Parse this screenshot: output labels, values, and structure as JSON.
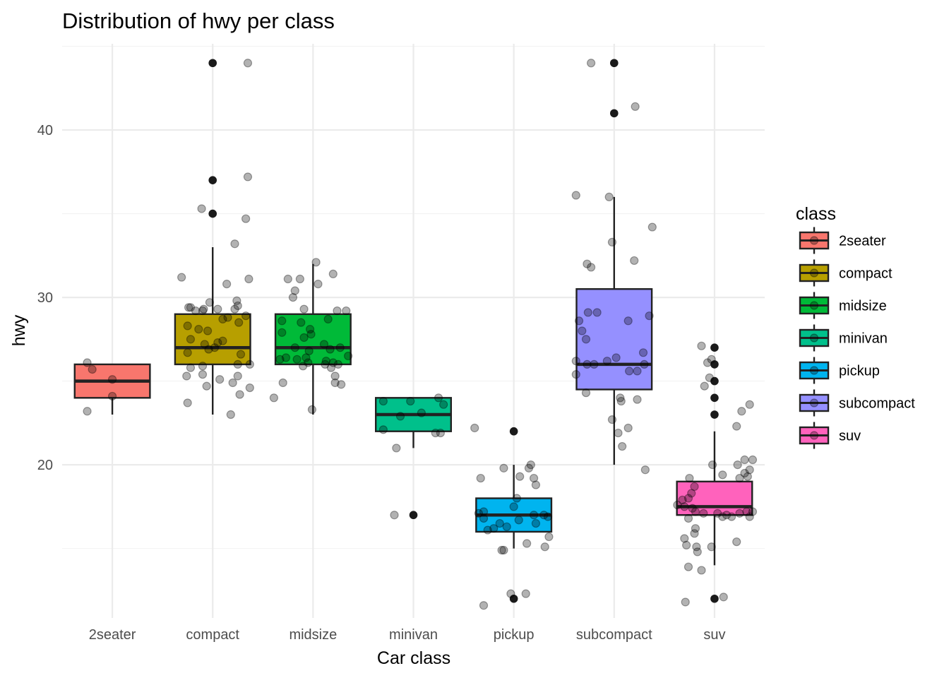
{
  "chart_data": {
    "type": "boxplot",
    "title": "Distribution of hwy per class",
    "xlabel": "Car class",
    "ylabel": "hwy",
    "ylim": [
      10.85,
      45.15
    ],
    "yticks": [
      20,
      30,
      40
    ],
    "grid": true,
    "legend": {
      "title": "class",
      "placement": "right"
    },
    "categories": [
      "2seater",
      "compact",
      "midsize",
      "minivan",
      "pickup",
      "subcompact",
      "suv"
    ],
    "series": [
      {
        "name": "2seater",
        "color": "#F8766D",
        "box": {
          "lower_whisker": 23,
          "q1": 24,
          "median": 25,
          "q3": 26,
          "upper_whisker": 26
        },
        "outliers": [],
        "points": [
          {
            "x": -0.25,
            "y": 26.1
          },
          {
            "x": -0.25,
            "y": 23.2
          },
          {
            "x": -0.2,
            "y": 25.7
          },
          {
            "x": 0.0,
            "y": 25.1
          },
          {
            "x": 0.0,
            "y": 24.1
          }
        ]
      },
      {
        "name": "compact",
        "color": "#B79F00",
        "box": {
          "lower_whisker": 23,
          "q1": 26,
          "median": 27,
          "q3": 29,
          "upper_whisker": 33
        },
        "outliers": [
          35,
          37,
          44
        ],
        "points": [
          {
            "x": 0.35,
            "y": 44.0
          },
          {
            "x": 0.35,
            "y": 37.2
          },
          {
            "x": 0.33,
            "y": 34.7
          },
          {
            "x": 0.14,
            "y": 30.8
          },
          {
            "x": -0.31,
            "y": 31.2
          },
          {
            "x": 0.22,
            "y": 33.2
          },
          {
            "x": 0.36,
            "y": 31.1
          },
          {
            "x": -0.11,
            "y": 35.3
          },
          {
            "x": -0.26,
            "y": 25.3
          },
          {
            "x": -0.25,
            "y": 28.3
          },
          {
            "x": -0.24,
            "y": 29.4
          },
          {
            "x": -0.22,
            "y": 29.4
          },
          {
            "x": -0.17,
            "y": 29.2
          },
          {
            "x": -0.1,
            "y": 29.2
          },
          {
            "x": -0.09,
            "y": 29.3
          },
          {
            "x": -0.03,
            "y": 29.7
          },
          {
            "x": 0.05,
            "y": 29.3
          },
          {
            "x": 0.22,
            "y": 29.3
          },
          {
            "x": 0.24,
            "y": 29.8
          },
          {
            "x": 0.25,
            "y": 29.5
          },
          {
            "x": 0.33,
            "y": 28.9
          },
          {
            "x": 0.26,
            "y": 28.5
          },
          {
            "x": 0.15,
            "y": 28.8
          },
          {
            "x": 0.1,
            "y": 28.7
          },
          {
            "x": -0.14,
            "y": 28.1
          },
          {
            "x": -0.05,
            "y": 28.0
          },
          {
            "x": -0.22,
            "y": 27.5
          },
          {
            "x": -0.25,
            "y": 26.7
          },
          {
            "x": -0.08,
            "y": 27.2
          },
          {
            "x": -0.04,
            "y": 26.9
          },
          {
            "x": 0.02,
            "y": 27.0
          },
          {
            "x": 0.05,
            "y": 27.3
          },
          {
            "x": 0.1,
            "y": 27.4
          },
          {
            "x": 0.28,
            "y": 26.6
          },
          {
            "x": -0.22,
            "y": 25.8
          },
          {
            "x": -0.1,
            "y": 25.9
          },
          {
            "x": 0.25,
            "y": 26.0
          },
          {
            "x": 0.37,
            "y": 26.0
          },
          {
            "x": 0.25,
            "y": 25.3
          },
          {
            "x": -0.1,
            "y": 25.4
          },
          {
            "x": 0.07,
            "y": 25.1
          },
          {
            "x": 0.2,
            "y": 24.9
          },
          {
            "x": -0.06,
            "y": 24.7
          },
          {
            "x": 0.27,
            "y": 24.2
          },
          {
            "x": 0.37,
            "y": 24.6
          },
          {
            "x": -0.25,
            "y": 23.7
          },
          {
            "x": 0.18,
            "y": 23.0
          }
        ]
      },
      {
        "name": "midsize",
        "color": "#00BA38",
        "box": {
          "lower_whisker": 23,
          "q1": 26,
          "median": 27,
          "q3": 29,
          "upper_whisker": 32
        },
        "outliers": [],
        "points": [
          {
            "x": 0.03,
            "y": 32.1
          },
          {
            "x": -0.25,
            "y": 31.1
          },
          {
            "x": -0.13,
            "y": 31.1
          },
          {
            "x": 0.05,
            "y": 30.8
          },
          {
            "x": 0.2,
            "y": 31.4
          },
          {
            "x": -0.18,
            "y": 30.4
          },
          {
            "x": -0.2,
            "y": 30.0
          },
          {
            "x": -0.09,
            "y": 29.3
          },
          {
            "x": 0.24,
            "y": 29.2
          },
          {
            "x": 0.33,
            "y": 29.2
          },
          {
            "x": -0.31,
            "y": 28.6
          },
          {
            "x": -0.12,
            "y": 28.5
          },
          {
            "x": 0.15,
            "y": 28.7
          },
          {
            "x": -0.03,
            "y": 28.1
          },
          {
            "x": -0.31,
            "y": 27.9
          },
          {
            "x": -0.09,
            "y": 27.6
          },
          {
            "x": -0.02,
            "y": 27.8
          },
          {
            "x": -0.18,
            "y": 27.0
          },
          {
            "x": 0.11,
            "y": 27.2
          },
          {
            "x": 0.27,
            "y": 27.0
          },
          {
            "x": -0.04,
            "y": 26.8
          },
          {
            "x": 0.17,
            "y": 26.9
          },
          {
            "x": -0.27,
            "y": 26.4
          },
          {
            "x": -0.16,
            "y": 26.3
          },
          {
            "x": -0.07,
            "y": 26.4
          },
          {
            "x": -0.05,
            "y": 26.1
          },
          {
            "x": -0.1,
            "y": 25.9
          },
          {
            "x": 0.13,
            "y": 26.2
          },
          {
            "x": 0.2,
            "y": 26.1
          },
          {
            "x": 0.35,
            "y": 26.5
          },
          {
            "x": -0.33,
            "y": 26.3
          },
          {
            "x": 0.12,
            "y": 26.0
          },
          {
            "x": 0.18,
            "y": 25.8
          },
          {
            "x": 0.25,
            "y": 26.0
          },
          {
            "x": -0.3,
            "y": 24.9
          },
          {
            "x": 0.22,
            "y": 25.3
          },
          {
            "x": 0.22,
            "y": 24.9
          },
          {
            "x": 0.28,
            "y": 24.8
          },
          {
            "x": -0.39,
            "y": 24.0
          },
          {
            "x": -0.01,
            "y": 23.3
          }
        ]
      },
      {
        "name": "minivan",
        "color": "#00C08B",
        "box": {
          "lower_whisker": 21,
          "q1": 22,
          "median": 23,
          "q3": 24,
          "upper_whisker": 24
        },
        "outliers": [
          17
        ],
        "points": [
          {
            "x": -0.3,
            "y": 23.8
          },
          {
            "x": -0.03,
            "y": 23.8
          },
          {
            "x": 0.25,
            "y": 24.0
          },
          {
            "x": 0.3,
            "y": 23.6
          },
          {
            "x": -0.13,
            "y": 22.9
          },
          {
            "x": 0.08,
            "y": 23.1
          },
          {
            "x": -0.3,
            "y": 22.1
          },
          {
            "x": 0.22,
            "y": 21.9
          },
          {
            "x": 0.27,
            "y": 21.9
          },
          {
            "x": -0.17,
            "y": 21.0
          },
          {
            "x": -0.19,
            "y": 17.0
          }
        ]
      },
      {
        "name": "pickup",
        "color": "#00B4EF",
        "box": {
          "lower_whisker": 15,
          "q1": 16,
          "median": 17,
          "q3": 18,
          "upper_whisker": 20
        },
        "outliers": [
          12,
          22
        ],
        "points": [
          {
            "x": -0.39,
            "y": 22.2
          },
          {
            "x": -0.33,
            "y": 19.2
          },
          {
            "x": -0.1,
            "y": 19.8
          },
          {
            "x": 0.06,
            "y": 19.3
          },
          {
            "x": 0.15,
            "y": 19.8
          },
          {
            "x": 0.17,
            "y": 20.0
          },
          {
            "x": 0.2,
            "y": 19.2
          },
          {
            "x": 0.22,
            "y": 18.8
          },
          {
            "x": 0.03,
            "y": 18.0
          },
          {
            "x": -0.3,
            "y": 17.2
          },
          {
            "x": -0.35,
            "y": 17.1
          },
          {
            "x": -0.3,
            "y": 16.8
          },
          {
            "x": -0.2,
            "y": 16.2
          },
          {
            "x": -0.26,
            "y": 16.1
          },
          {
            "x": -0.14,
            "y": 16.5
          },
          {
            "x": -0.07,
            "y": 16.3
          },
          {
            "x": 0.05,
            "y": 16.7
          },
          {
            "x": 0.0,
            "y": 17.5
          },
          {
            "x": 0.2,
            "y": 17.0
          },
          {
            "x": 0.3,
            "y": 17.0
          },
          {
            "x": 0.34,
            "y": 16.9
          },
          {
            "x": 0.22,
            "y": 16.5
          },
          {
            "x": 0.35,
            "y": 15.7
          },
          {
            "x": -0.12,
            "y": 14.9
          },
          {
            "x": -0.1,
            "y": 14.9
          },
          {
            "x": 0.13,
            "y": 15.3
          },
          {
            "x": 0.31,
            "y": 15.1
          },
          {
            "x": -0.03,
            "y": 12.3
          },
          {
            "x": 0.12,
            "y": 12.3
          },
          {
            "x": -0.3,
            "y": 11.6
          }
        ]
      },
      {
        "name": "subcompact",
        "color": "#9590FF",
        "box": {
          "lower_whisker": 20,
          "q1": 24.5,
          "median": 26,
          "q3": 30.5,
          "upper_whisker": 36
        },
        "outliers": [
          41,
          44
        ],
        "points": [
          {
            "x": -0.23,
            "y": 44.0
          },
          {
            "x": 0.21,
            "y": 41.4
          },
          {
            "x": -0.38,
            "y": 36.1
          },
          {
            "x": -0.05,
            "y": 36.0
          },
          {
            "x": 0.38,
            "y": 34.2
          },
          {
            "x": -0.02,
            "y": 33.3
          },
          {
            "x": -0.27,
            "y": 32.0
          },
          {
            "x": -0.23,
            "y": 31.8
          },
          {
            "x": 0.2,
            "y": 32.2
          },
          {
            "x": -0.26,
            "y": 29.1
          },
          {
            "x": -0.17,
            "y": 29.1
          },
          {
            "x": 0.35,
            "y": 28.9
          },
          {
            "x": -0.35,
            "y": 28.6
          },
          {
            "x": 0.14,
            "y": 28.6
          },
          {
            "x": -0.32,
            "y": 28.0
          },
          {
            "x": -0.28,
            "y": 27.5
          },
          {
            "x": -0.27,
            "y": 26.0
          },
          {
            "x": -0.38,
            "y": 26.2
          },
          {
            "x": -0.2,
            "y": 26.0
          },
          {
            "x": -0.07,
            "y": 26.2
          },
          {
            "x": 0.02,
            "y": 26.4
          },
          {
            "x": 0.29,
            "y": 26.7
          },
          {
            "x": 0.3,
            "y": 26.0
          },
          {
            "x": 0.15,
            "y": 25.6
          },
          {
            "x": 0.23,
            "y": 25.6
          },
          {
            "x": -0.38,
            "y": 25.4
          },
          {
            "x": -0.28,
            "y": 24.3
          },
          {
            "x": 0.06,
            "y": 24.0
          },
          {
            "x": 0.07,
            "y": 23.8
          },
          {
            "x": 0.23,
            "y": 23.9
          },
          {
            "x": -0.02,
            "y": 22.7
          },
          {
            "x": 0.14,
            "y": 22.2
          },
          {
            "x": 0.04,
            "y": 21.9
          },
          {
            "x": 0.08,
            "y": 21.1
          },
          {
            "x": 0.31,
            "y": 19.7
          }
        ]
      },
      {
        "name": "suv",
        "color": "#FF62BC",
        "box": {
          "lower_whisker": 14,
          "q1": 17,
          "median": 17.5,
          "q3": 19,
          "upper_whisker": 22
        },
        "outliers": [
          12,
          23,
          24,
          25,
          26,
          27
        ],
        "points": [
          {
            "x": -0.13,
            "y": 27.1
          },
          {
            "x": -0.03,
            "y": 26.3
          },
          {
            "x": -0.07,
            "y": 26.1
          },
          {
            "x": -0.05,
            "y": 25.2
          },
          {
            "x": -0.1,
            "y": 24.7
          },
          {
            "x": 0.35,
            "y": 23.6
          },
          {
            "x": 0.27,
            "y": 23.2
          },
          {
            "x": 0.22,
            "y": 22.3
          },
          {
            "x": 0.23,
            "y": 20.0
          },
          {
            "x": 0.3,
            "y": 20.3
          },
          {
            "x": 0.38,
            "y": 20.3
          },
          {
            "x": 0.35,
            "y": 19.7
          },
          {
            "x": 0.3,
            "y": 19.5
          },
          {
            "x": -0.02,
            "y": 20.0
          },
          {
            "x": 0.08,
            "y": 19.4
          },
          {
            "x": 0.25,
            "y": 19.2
          },
          {
            "x": 0.33,
            "y": 19.3
          },
          {
            "x": -0.25,
            "y": 19.2
          },
          {
            "x": -0.2,
            "y": 18.7
          },
          {
            "x": -0.23,
            "y": 18.3
          },
          {
            "x": -0.26,
            "y": 18.0
          },
          {
            "x": -0.32,
            "y": 17.9
          },
          {
            "x": -0.37,
            "y": 17.6
          },
          {
            "x": -0.3,
            "y": 17.5
          },
          {
            "x": -0.22,
            "y": 17.4
          },
          {
            "x": -0.19,
            "y": 17.2
          },
          {
            "x": -0.11,
            "y": 17.1
          },
          {
            "x": 0.03,
            "y": 17.1
          },
          {
            "x": 0.12,
            "y": 17.0
          },
          {
            "x": 0.25,
            "y": 17.1
          },
          {
            "x": 0.32,
            "y": 17.2
          },
          {
            "x": 0.35,
            "y": 16.9
          },
          {
            "x": 0.38,
            "y": 17.2
          },
          {
            "x": 0.08,
            "y": 16.9
          },
          {
            "x": 0.17,
            "y": 16.9
          },
          {
            "x": -0.26,
            "y": 16.8
          },
          {
            "x": -0.19,
            "y": 16.2
          },
          {
            "x": -0.2,
            "y": 15.9
          },
          {
            "x": -0.3,
            "y": 15.6
          },
          {
            "x": -0.28,
            "y": 15.2
          },
          {
            "x": -0.18,
            "y": 15.1
          },
          {
            "x": -0.17,
            "y": 14.8
          },
          {
            "x": -0.03,
            "y": 15.1
          },
          {
            "x": 0.22,
            "y": 15.4
          },
          {
            "x": -0.26,
            "y": 13.9
          },
          {
            "x": -0.13,
            "y": 13.7
          },
          {
            "x": -0.29,
            "y": 11.8
          },
          {
            "x": 0.09,
            "y": 12.1
          }
        ]
      }
    ]
  }
}
